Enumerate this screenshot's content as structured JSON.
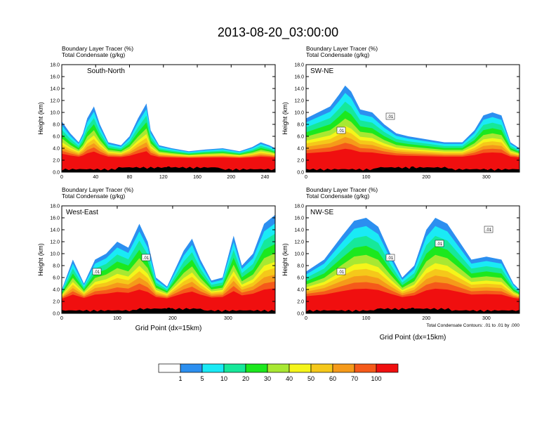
{
  "main_title": "2013-08-20_03:00:00",
  "field_label_1": "Boundary Layer Tracer   (%)",
  "field_label_2": "Total Condensate   (g/kg)",
  "ylabel": "Height (km)",
  "xlabel": "Grid Point (dx=15km)",
  "contour_note": "Total Condensate Contours: .01 to .01 by .000",
  "colors": {
    "scale": [
      "#ffffff",
      "#2c8ff0",
      "#1aeaf5",
      "#16e89a",
      "#1ce81e",
      "#a8e832",
      "#f5f51a",
      "#f5c81a",
      "#f59a1a",
      "#f55a1a",
      "#f00f0f"
    ]
  },
  "colorbar": {
    "labels": [
      "1",
      "5",
      "10",
      "20",
      "30",
      "40",
      "50",
      "60",
      "70",
      "100"
    ]
  },
  "chart_data": [
    {
      "type": "heatmap",
      "panel": "South-North",
      "xlim": [
        0,
        252
      ],
      "ylim": [
        0,
        18
      ],
      "xticks": [
        0,
        40,
        80,
        120,
        160,
        200,
        240
      ],
      "yticks": [
        "0.0",
        "2.0",
        "4.0",
        "6.0",
        "8.0",
        "10.0",
        "12.0",
        "14.0",
        "16.0",
        "18.0"
      ],
      "marker_x": 126,
      "contour_labels": [],
      "tracer_top_km": [
        [
          0,
          8.5
        ],
        [
          10,
          6.5
        ],
        [
          20,
          5.0
        ],
        [
          25,
          6.5
        ],
        [
          30,
          9.0
        ],
        [
          38,
          11.0
        ],
        [
          45,
          8.0
        ],
        [
          55,
          5.0
        ],
        [
          70,
          4.5
        ],
        [
          80,
          6.0
        ],
        [
          90,
          9.0
        ],
        [
          100,
          11.5
        ],
        [
          105,
          7.0
        ],
        [
          115,
          4.5
        ],
        [
          130,
          4.0
        ],
        [
          150,
          3.5
        ],
        [
          170,
          3.8
        ],
        [
          190,
          4.0
        ],
        [
          210,
          3.5
        ],
        [
          225,
          4.2
        ],
        [
          235,
          5.0
        ],
        [
          245,
          4.5
        ],
        [
          252,
          4.0
        ]
      ]
    },
    {
      "type": "heatmap",
      "panel": "SW-NE",
      "xlim": [
        0,
        355
      ],
      "ylim": [
        0,
        18
      ],
      "xticks": [
        0,
        100,
        200,
        300
      ],
      "yticks": [
        "0.0",
        "2.0",
        "4.0",
        "6.0",
        "8.0",
        "10.0",
        "12.0",
        "14.0",
        "16.0",
        "18.0"
      ],
      "marker_x": 177,
      "contour_labels": [
        ".01",
        ".01"
      ],
      "tracer_top_km": [
        [
          0,
          9.0
        ],
        [
          20,
          10.0
        ],
        [
          40,
          11.0
        ],
        [
          55,
          13.0
        ],
        [
          65,
          14.5
        ],
        [
          75,
          13.5
        ],
        [
          90,
          10.5
        ],
        [
          110,
          10.0
        ],
        [
          130,
          8.0
        ],
        [
          150,
          6.5
        ],
        [
          170,
          6.0
        ],
        [
          200,
          5.5
        ],
        [
          230,
          5.0
        ],
        [
          260,
          5.0
        ],
        [
          280,
          7.0
        ],
        [
          295,
          9.5
        ],
        [
          310,
          10.0
        ],
        [
          325,
          9.5
        ],
        [
          340,
          5.0
        ],
        [
          355,
          4.0
        ]
      ]
    },
    {
      "type": "heatmap",
      "panel": "West-East",
      "xlim": [
        0,
        385
      ],
      "ylim": [
        0,
        18
      ],
      "xticks": [
        0,
        100,
        200,
        300
      ],
      "yticks": [
        "0.0",
        "2.0",
        "4.0",
        "6.0",
        "8.0",
        "10.0",
        "12.0",
        "14.0",
        "16.0",
        "18.0"
      ],
      "marker_x": 193,
      "contour_labels": [
        ".01",
        ".01"
      ],
      "tracer_top_km": [
        [
          0,
          4.0
        ],
        [
          20,
          9.0
        ],
        [
          40,
          5.0
        ],
        [
          60,
          9.0
        ],
        [
          80,
          10.0
        ],
        [
          100,
          12.0
        ],
        [
          120,
          11.0
        ],
        [
          140,
          15.0
        ],
        [
          155,
          12.0
        ],
        [
          170,
          6.0
        ],
        [
          190,
          4.5
        ],
        [
          220,
          10.5
        ],
        [
          235,
          12.5
        ],
        [
          250,
          9.0
        ],
        [
          270,
          5.5
        ],
        [
          290,
          6.0
        ],
        [
          310,
          13.0
        ],
        [
          325,
          8.0
        ],
        [
          345,
          10.0
        ],
        [
          365,
          15.0
        ],
        [
          385,
          16.5
        ]
      ]
    },
    {
      "type": "heatmap",
      "panel": "NW-SE",
      "xlim": [
        0,
        355
      ],
      "ylim": [
        0,
        18
      ],
      "xticks": [
        0,
        100,
        200,
        300
      ],
      "yticks": [
        "0.0",
        "2.0",
        "4.0",
        "6.0",
        "8.0",
        "10.0",
        "12.0",
        "14.0",
        "16.0",
        "18.0"
      ],
      "marker_x": 177,
      "contour_labels": [
        ".01",
        ".01",
        ".01",
        ".01"
      ],
      "tracer_top_km": [
        [
          0,
          7.0
        ],
        [
          30,
          9.0
        ],
        [
          60,
          13.0
        ],
        [
          80,
          15.5
        ],
        [
          100,
          16.0
        ],
        [
          120,
          14.5
        ],
        [
          140,
          10.0
        ],
        [
          160,
          6.0
        ],
        [
          180,
          8.0
        ],
        [
          200,
          14.0
        ],
        [
          215,
          16.0
        ],
        [
          235,
          15.0
        ],
        [
          255,
          12.0
        ],
        [
          275,
          9.0
        ],
        [
          300,
          9.5
        ],
        [
          325,
          9.0
        ],
        [
          345,
          5.0
        ],
        [
          355,
          4.0
        ]
      ]
    }
  ]
}
